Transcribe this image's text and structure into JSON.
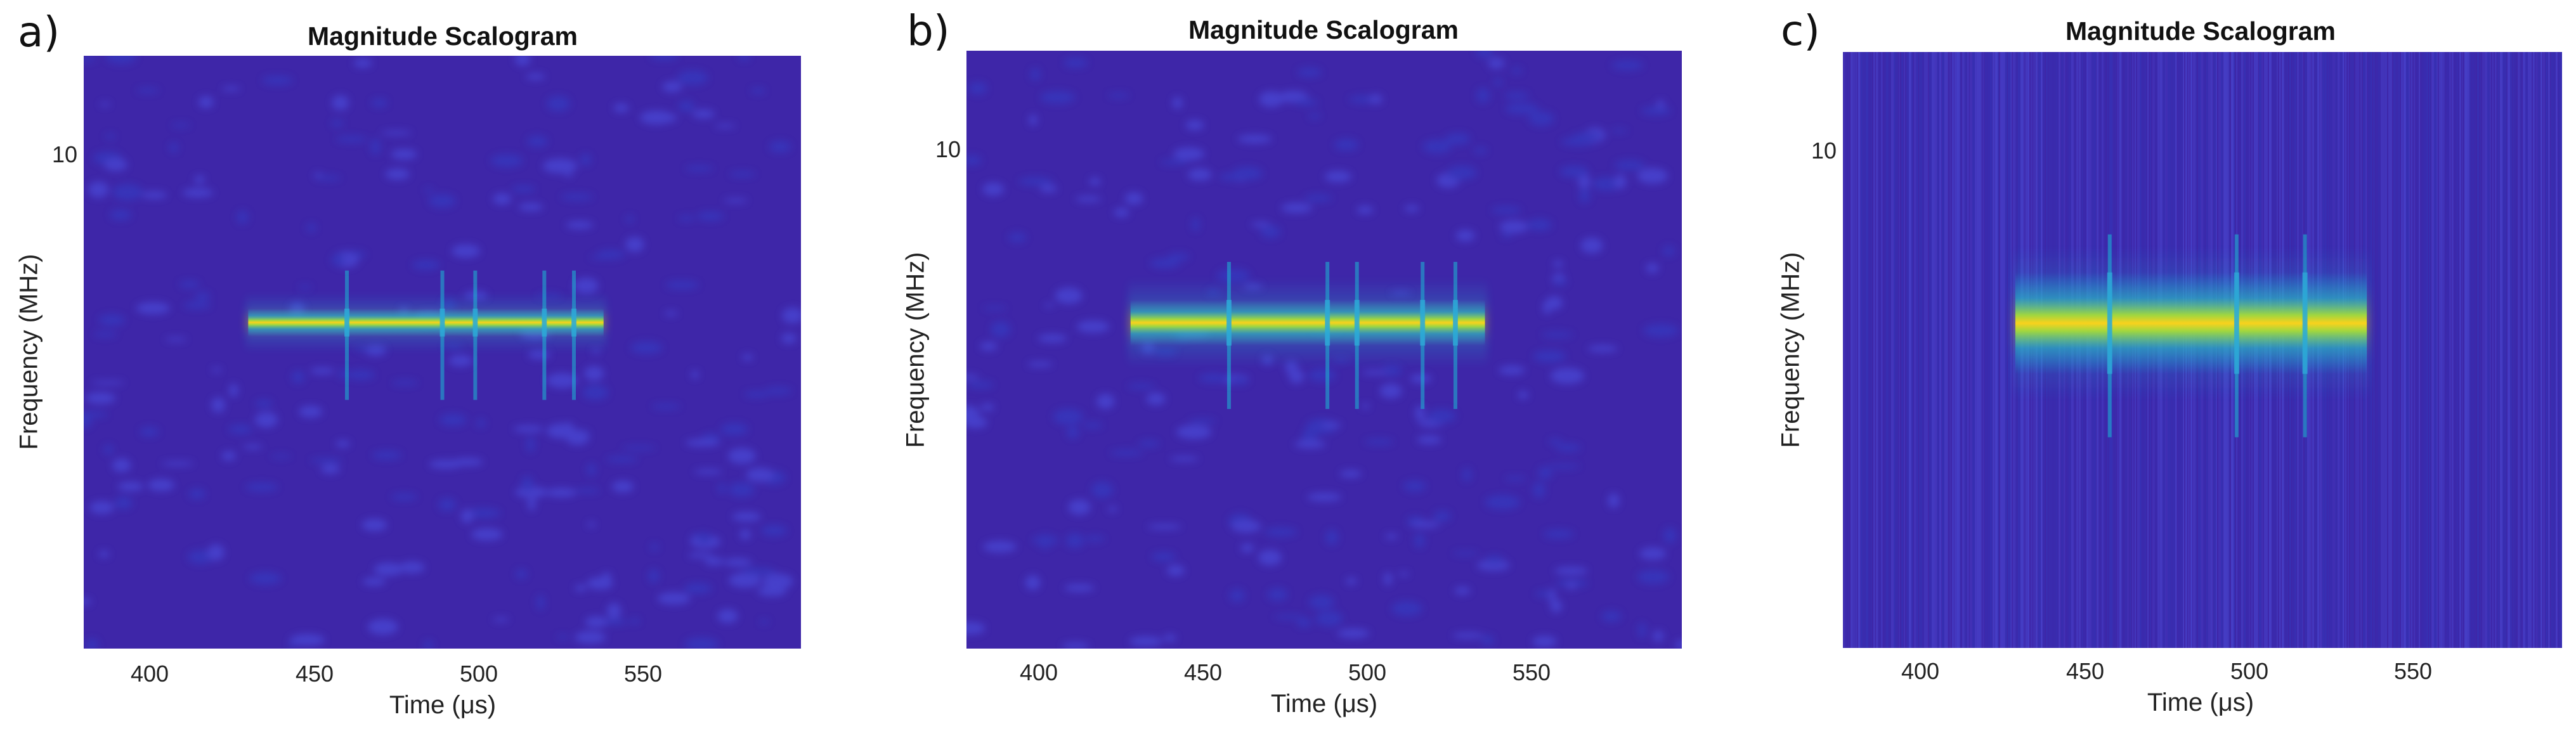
{
  "chart_data": [
    {
      "panel_label": "a)",
      "type": "heatmap",
      "title": "Magnitude Scalogram",
      "xlabel": "Time (μs)",
      "ylabel": "Frequency (MHz)",
      "xlim": [
        380,
        598
      ],
      "x_ticks": [
        "400",
        "450",
        "500",
        "550"
      ],
      "y_ticks": [
        "10"
      ],
      "signal": {
        "t_start": 430,
        "t_end": 538,
        "band": "narrow",
        "notches_us": [
          460,
          489,
          499,
          520,
          529
        ]
      },
      "colormap": [
        "#3e26a8",
        "#1cb8d4",
        "#f9d21c"
      ]
    },
    {
      "panel_label": "b)",
      "type": "heatmap",
      "title": "Magnitude Scalogram",
      "xlabel": "Time (μs)",
      "ylabel": "Frequency (MHz)",
      "xlim": [
        380,
        598
      ],
      "x_ticks": [
        "400",
        "450",
        "500",
        "550"
      ],
      "y_ticks": [
        "10"
      ],
      "signal": {
        "t_start": 430,
        "t_end": 538,
        "band": "medium",
        "notches_us": [
          460,
          490,
          499,
          519,
          529
        ]
      },
      "colormap": [
        "#3e26a8",
        "#1cb8d4",
        "#f9d21c"
      ]
    },
    {
      "panel_label": "c)",
      "type": "heatmap",
      "title": "Magnitude Scalogram",
      "xlabel": "Time (μs)",
      "ylabel": "Frequency (MHz)",
      "xlim": [
        377,
        598
      ],
      "x_ticks": [
        "400",
        "450",
        "500",
        "550"
      ],
      "y_ticks": [
        "10"
      ],
      "signal": {
        "t_start": 430,
        "t_end": 538,
        "band": "wide",
        "notches_us": [
          459,
          498,
          519
        ]
      },
      "colormap": [
        "#3e26a8",
        "#1cb8d4",
        "#f9d21c"
      ]
    }
  ]
}
